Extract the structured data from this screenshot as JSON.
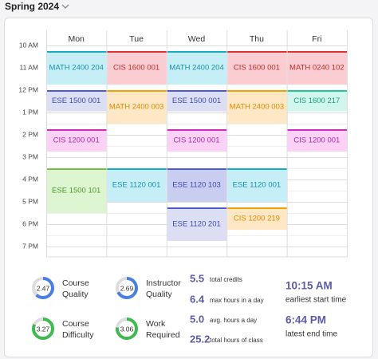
{
  "header": {
    "term": "Spring 2024"
  },
  "calendar": {
    "hours": [
      "10 AM",
      "11 AM",
      "12 PM",
      "1 PM",
      "2 PM",
      "3 PM",
      "4 PM",
      "5 PM",
      "6 PM",
      "7 PM"
    ],
    "days": [
      {
        "name": "Mon",
        "events": [
          "MATH 2400 204",
          "ESE 1500 001",
          "CIS 1200 001",
          "ESE 1500 101"
        ]
      },
      {
        "name": "Tue",
        "events": [
          "CIS 1600 001",
          "MATH 2400 003",
          "ESE 1120 001"
        ]
      },
      {
        "name": "Wed",
        "events": [
          "MATH 2400 204",
          "ESE 1500 001",
          "CIS 1200 001",
          "ESE 1120 103",
          "ESE 1120 201"
        ]
      },
      {
        "name": "Thu",
        "events": [
          "CIS 1600 001",
          "MATH 2400 003",
          "ESE 1120 001",
          "CIS 1200 219"
        ]
      },
      {
        "name": "Fri",
        "events": [
          "MATH 0240 102",
          "CIS 1600 217",
          "CIS 1200 001"
        ]
      }
    ]
  },
  "ratings": [
    {
      "value": "2.47",
      "label": [
        "Course",
        "Quality"
      ]
    },
    {
      "value": "2.69",
      "label": [
        "Instructor",
        "Quality"
      ]
    },
    {
      "value": "3.27",
      "label": [
        "Course",
        "Difficulty"
      ]
    },
    {
      "value": "3.06",
      "label": [
        "Work",
        "Required"
      ]
    }
  ],
  "stats": [
    {
      "value": "5.5",
      "label": "total credits"
    },
    {
      "value": "6.4",
      "label": "max hours in a day"
    },
    {
      "value": "5.0",
      "label": "avg. hours a day"
    },
    {
      "value": "25.2",
      "label": "total hours of class"
    }
  ],
  "times": [
    {
      "value": "10:15 AM",
      "label": "earliest start time"
    },
    {
      "value": "6:44 PM",
      "label": "latest end time"
    }
  ]
}
